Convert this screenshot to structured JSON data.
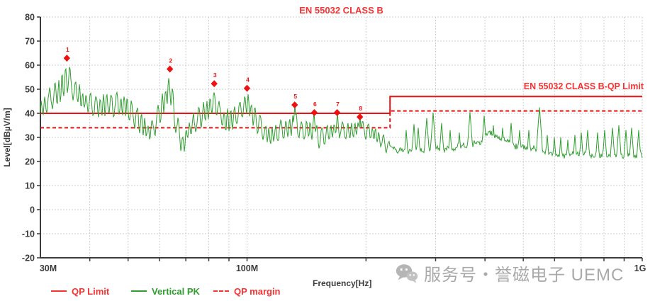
{
  "watermark": {
    "icon": "wechat-icon",
    "text": "服务号・誉磁电子 UEMC"
  },
  "chart_data": {
    "type": "line",
    "title": "EN 55032 CLASS B",
    "xlabel": "Frequency[Hz]",
    "ylabel": "Level[dBµV/m]",
    "x_scale": "log",
    "x_range_mhz": [
      30,
      1000
    ],
    "ylim": [
      -20,
      80
    ],
    "grid": true,
    "y_ticks": [
      80,
      70,
      60,
      50,
      40,
      30,
      20,
      10,
      0,
      -10,
      -20
    ],
    "x_ticks": [
      {
        "mhz": 30,
        "label": "30M"
      },
      {
        "mhz": 100,
        "label": "100M"
      },
      {
        "mhz": 1000,
        "label": "1G"
      }
    ],
    "x_minor_gridlines_mhz": [
      40,
      50,
      60,
      70,
      80,
      90,
      100,
      200,
      300,
      400,
      500,
      600,
      700,
      800,
      900,
      1000
    ],
    "colors": {
      "limit_red": "#ee1111",
      "text_red": "#f63232",
      "trace_green": "#2f9e2f",
      "grid": "#cfcfcf",
      "axis": "#3b3b3b",
      "watermark_gray": "#a9a9a9"
    },
    "limit_lines": [
      {
        "name": "EN 55032 CLASS B-QP Limit",
        "style": "solid",
        "color": "#ee1111",
        "points_mhz_db": [
          [
            30,
            40
          ],
          [
            230,
            40
          ],
          [
            230,
            47
          ],
          [
            1000,
            47
          ]
        ]
      },
      {
        "name": "QP margin",
        "style": "dashed",
        "color": "#ee1111",
        "points_mhz_db": [
          [
            30,
            34
          ],
          [
            230,
            34
          ],
          [
            230,
            41
          ],
          [
            1000,
            41
          ]
        ]
      }
    ],
    "markers": [
      {
        "n": 1,
        "freq_mhz": 35.0,
        "level_db": 62.9
      },
      {
        "n": 2,
        "freq_mhz": 63.8,
        "level_db": 58.4
      },
      {
        "n": 3,
        "freq_mhz": 82.6,
        "level_db": 52.3
      },
      {
        "n": 4,
        "freq_mhz": 100.0,
        "level_db": 50.4
      },
      {
        "n": 5,
        "freq_mhz": 132.0,
        "level_db": 43.5
      },
      {
        "n": 6,
        "freq_mhz": 148.0,
        "level_db": 40.3
      },
      {
        "n": 7,
        "freq_mhz": 169.0,
        "level_db": 40.3
      },
      {
        "n": 8,
        "freq_mhz": 193.0,
        "level_db": 38.5
      }
    ],
    "series": [
      {
        "name": "Vertical PK",
        "color": "#2f9e2f",
        "envelope_mhz_lo_hi": [
          [
            30,
            37,
            46
          ],
          [
            32,
            40,
            52
          ],
          [
            34,
            44,
            58
          ],
          [
            35,
            46,
            62
          ],
          [
            36.5,
            44,
            57
          ],
          [
            38,
            41,
            52
          ],
          [
            40,
            39,
            50
          ],
          [
            43,
            37,
            49
          ],
          [
            46,
            38,
            50
          ],
          [
            49,
            37,
            49
          ],
          [
            52,
            33,
            45
          ],
          [
            55,
            28,
            39
          ],
          [
            57,
            27,
            37
          ],
          [
            60,
            33,
            46
          ],
          [
            62.5,
            40,
            54
          ],
          [
            63.8,
            44,
            58
          ],
          [
            65,
            36,
            50
          ],
          [
            67,
            26,
            38
          ],
          [
            69,
            21,
            32
          ],
          [
            71,
            27,
            38
          ],
          [
            74,
            31,
            42
          ],
          [
            78,
            34,
            46
          ],
          [
            81,
            37,
            49
          ],
          [
            83,
            39,
            52
          ],
          [
            85,
            34,
            46
          ],
          [
            88,
            31,
            42
          ],
          [
            92,
            32,
            44
          ],
          [
            96,
            35,
            47
          ],
          [
            99,
            38,
            50
          ],
          [
            101,
            37,
            49
          ],
          [
            104,
            33,
            45
          ],
          [
            108,
            29,
            40
          ],
          [
            113,
            25,
            35
          ],
          [
            118,
            26,
            36
          ],
          [
            124,
            28,
            38
          ],
          [
            130,
            29,
            40
          ],
          [
            133,
            30,
            41
          ],
          [
            137,
            27,
            37
          ],
          [
            143,
            28,
            38
          ],
          [
            148,
            28,
            39
          ],
          [
            152,
            25,
            34
          ],
          [
            158,
            26,
            36
          ],
          [
            164,
            28,
            37
          ],
          [
            170,
            29,
            38
          ],
          [
            177,
            28,
            37
          ],
          [
            185,
            28,
            37
          ],
          [
            193,
            29,
            38
          ],
          [
            200,
            29,
            37
          ],
          [
            210,
            27,
            35
          ],
          [
            220,
            24,
            32
          ],
          [
            230,
            22,
            29
          ],
          [
            245,
            21,
            27
          ],
          [
            260,
            21,
            28
          ],
          [
            280,
            21,
            28
          ],
          [
            300,
            22,
            28
          ],
          [
            320,
            22,
            29
          ],
          [
            345,
            22,
            29
          ],
          [
            370,
            23,
            30
          ],
          [
            395,
            26,
            33
          ],
          [
            415,
            28,
            35
          ],
          [
            435,
            26,
            33
          ],
          [
            455,
            24,
            31
          ],
          [
            480,
            23,
            30
          ],
          [
            510,
            22,
            29
          ],
          [
            545,
            21,
            28
          ],
          [
            580,
            20,
            26
          ],
          [
            620,
            19,
            25
          ],
          [
            660,
            20,
            26
          ],
          [
            700,
            20,
            27
          ],
          [
            750,
            19,
            26
          ],
          [
            800,
            19,
            25
          ],
          [
            850,
            19,
            25
          ],
          [
            900,
            19,
            25
          ],
          [
            950,
            19,
            25
          ],
          [
            1000,
            19,
            26
          ]
        ],
        "spikes_mhz_db": [
          [
            132,
            43.5
          ],
          [
            148,
            40.3
          ],
          [
            169,
            40.3
          ],
          [
            193,
            38.5
          ],
          [
            253,
            33
          ],
          [
            264,
            35.5
          ],
          [
            271,
            34
          ],
          [
            285,
            38
          ],
          [
            296,
            40.3
          ],
          [
            311,
            36
          ],
          [
            326,
            33
          ],
          [
            345,
            32
          ],
          [
            366,
            40.5
          ],
          [
            398,
            39
          ],
          [
            420,
            35
          ],
          [
            443,
            34
          ],
          [
            465,
            36
          ],
          [
            490,
            33
          ],
          [
            516,
            33
          ],
          [
            549,
            42.5
          ],
          [
            575,
            31
          ],
          [
            600,
            30
          ],
          [
            622,
            30
          ],
          [
            648,
            29
          ],
          [
            675,
            31
          ],
          [
            700,
            32
          ],
          [
            728,
            33
          ],
          [
            771,
            32
          ],
          [
            803,
            33
          ],
          [
            840,
            34
          ],
          [
            872,
            35
          ],
          [
            910,
            33
          ],
          [
            941,
            34
          ],
          [
            981,
            33
          ]
        ]
      }
    ],
    "legend": [
      {
        "label": "QP Limit",
        "color": "#f63232",
        "line": "solid"
      },
      {
        "label": "Vertical PK",
        "color": "#2f9e2f",
        "line": "solid"
      },
      {
        "label": "QP margin",
        "color": "#f63232",
        "line": "dashed"
      }
    ],
    "legend_position": "bottom"
  }
}
